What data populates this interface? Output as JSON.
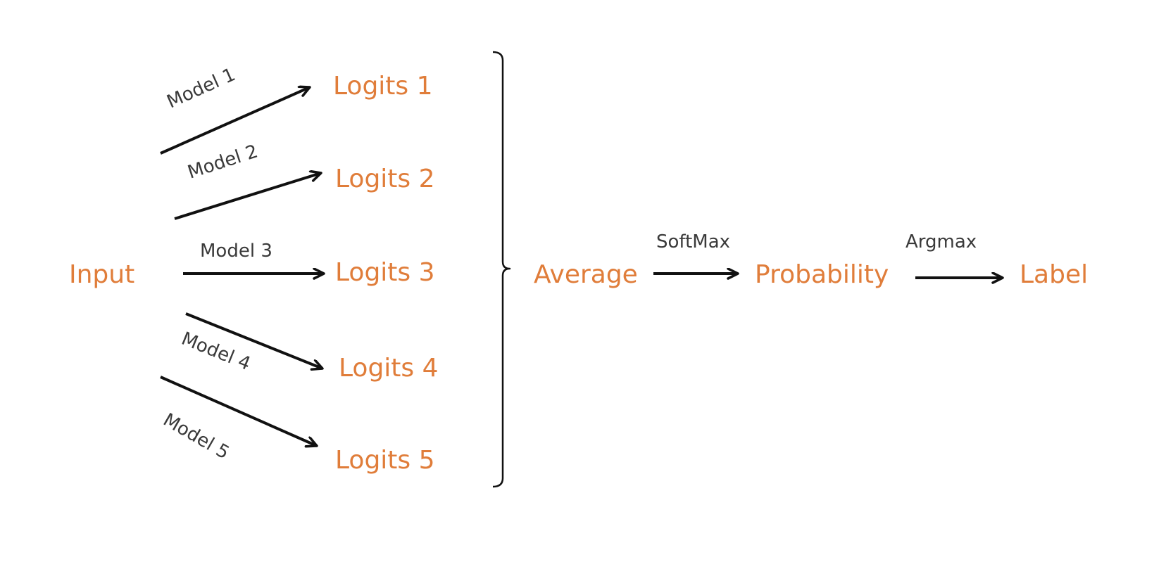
{
  "colors": {
    "node": "#e07d3a",
    "edge": "#111111",
    "edge_label": "#3a3a3a",
    "background": "#ffffff"
  },
  "nodes": {
    "input": "Input",
    "logits": [
      "Logits 1",
      "Logits 2",
      "Logits 3",
      "Logits 4",
      "Logits 5"
    ],
    "average": "Average",
    "probability": "Probability",
    "label": "Label"
  },
  "edges": {
    "models": [
      "Model 1",
      "Model 2",
      "Model 3",
      "Model 4",
      "Model 5"
    ],
    "softmax": "SoftMax",
    "argmax": "Argmax"
  }
}
